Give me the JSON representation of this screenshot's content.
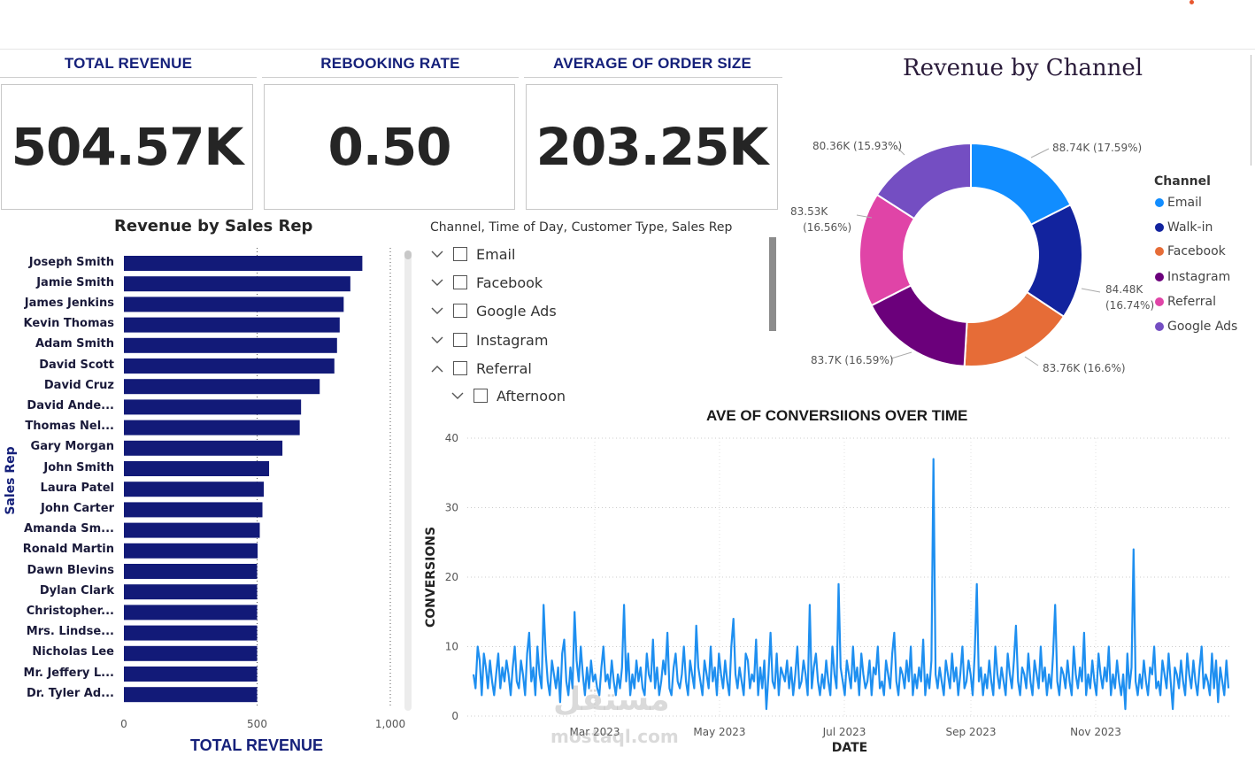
{
  "kpis": [
    {
      "title": "TOTAL REVENUE",
      "value": "504.57K"
    },
    {
      "title": "REBOOKING RATE",
      "value": "0.50"
    },
    {
      "title": "AVERAGE OF ORDER SIZE",
      "value": "203.25K"
    }
  ],
  "slicer": {
    "title": "Channel, Time of Day, Customer Type, Sales Rep",
    "items": [
      {
        "label": "Email",
        "expanded": false
      },
      {
        "label": "Facebook",
        "expanded": false
      },
      {
        "label": "Google Ads",
        "expanded": false
      },
      {
        "label": "Instagram",
        "expanded": false
      },
      {
        "label": "Referral",
        "expanded": true
      },
      {
        "label": "Afternoon",
        "expanded": false
      }
    ]
  },
  "donut_legend": {
    "title": "Channel"
  },
  "watermark": {
    "arabic": "مستقل",
    "site": "mostaql.com"
  },
  "colors": {
    "navy": "#121a78",
    "line": "#1e8ff0",
    "title_blue": "#15207a"
  },
  "chart_data": [
    {
      "type": "bar",
      "orientation": "horizontal",
      "title": "Revenue by Sales Rep",
      "xlabel": "TOTAL REVENUE",
      "ylabel": "Sales Rep",
      "xlim": [
        0,
        1000
      ],
      "xticks": [
        "0",
        "500",
        "1,000"
      ],
      "categories": [
        "Joseph Smith",
        "Jamie Smith",
        "James Jenkins",
        "Kevin Thomas",
        "Adam Smith",
        "David Scott",
        "David Cruz",
        "David Ande...",
        "Thomas Nel...",
        "Gary Morgan",
        "John Smith",
        "Laura Patel",
        "John Carter",
        "Amanda Sm...",
        "Ronald Martin",
        "Dawn Blevins",
        "Dylan Clark",
        "Christopher...",
        "Mrs. Lindse...",
        "Nicholas Lee",
        "Mr. Jeffery L...",
        "Dr. Tyler Ad..."
      ],
      "values": [
        895,
        850,
        825,
        810,
        800,
        790,
        735,
        665,
        660,
        595,
        545,
        525,
        520,
        510,
        502,
        500,
        500,
        500,
        500,
        500,
        500,
        500
      ],
      "color": "#121a78"
    },
    {
      "type": "pie",
      "subtype": "donut",
      "title": "Revenue by Channel",
      "legend_title": "Channel",
      "legend_order": [
        "Email",
        "Walk-in",
        "Facebook",
        "Instagram",
        "Referral",
        "Google Ads"
      ],
      "slices": [
        {
          "name": "Email",
          "value": 88.74,
          "label": "88.74K (17.59%)",
          "color": "#118dff"
        },
        {
          "name": "Walk-in",
          "value": 84.48,
          "label": "84.48K (16.74%)",
          "color": "#12239e"
        },
        {
          "name": "Facebook",
          "value": 83.76,
          "label": "83.76K (16.6%)",
          "color": "#e66c37"
        },
        {
          "name": "Instagram",
          "value": 83.7,
          "label": "83.7K (16.59%)",
          "color": "#6b007b"
        },
        {
          "name": "Referral",
          "value": 83.53,
          "label": "83.53K (16.56%)",
          "color": "#e044a7"
        },
        {
          "name": "Google Ads",
          "value": 80.36,
          "label": "80.36K (15.93%)",
          "color": "#744ec2"
        }
      ]
    },
    {
      "type": "line",
      "title": "AVE OF CONVERSIIONS OVER TIME",
      "xlabel": "DATE",
      "ylabel": "CONVERSIONS",
      "ylim": [
        0,
        40
      ],
      "yticks": [
        "0",
        "10",
        "20",
        "30",
        "40"
      ],
      "xticks": [
        "Mar 2023",
        "May 2023",
        "Jul 2023",
        "Sep 2023",
        "Nov 2023"
      ],
      "x_range": [
        "2023-01-15",
        "2023-12-31"
      ],
      "color": "#1e8ff0",
      "values": [
        6,
        4,
        10,
        8,
        3,
        9,
        7,
        4,
        8,
        5,
        3,
        6,
        9,
        4,
        7,
        5,
        8,
        6,
        3,
        7,
        10,
        5,
        4,
        8,
        6,
        3,
        9,
        12,
        5,
        7,
        3,
        10,
        6,
        4,
        16,
        9,
        5,
        3,
        8,
        6,
        4,
        7,
        2,
        9,
        11,
        5,
        3,
        7,
        4,
        15,
        8,
        5,
        10,
        6,
        3,
        7,
        4,
        8,
        5,
        6,
        4,
        3,
        7,
        10,
        5,
        6,
        4,
        8,
        5,
        3,
        6,
        4,
        7,
        16,
        5,
        9,
        3,
        6,
        4,
        8,
        5,
        7,
        4,
        3,
        9,
        6,
        5,
        11,
        4,
        7,
        3,
        5,
        8,
        6,
        12,
        4,
        3,
        7,
        9,
        5,
        4,
        6,
        10,
        5,
        3,
        8,
        6,
        4,
        13,
        7,
        5,
        3,
        8,
        6,
        4,
        10,
        5,
        7,
        3,
        9,
        6,
        4,
        8,
        5,
        3,
        10,
        14,
        6,
        4,
        7,
        5,
        3,
        9,
        8,
        4,
        6,
        5,
        11,
        3,
        7,
        4,
        8,
        1,
        6,
        12,
        5,
        4,
        9,
        3,
        7,
        6,
        5,
        8,
        4,
        7,
        3,
        6,
        10,
        4,
        5,
        8,
        6,
        3,
        16,
        4,
        7,
        9,
        5,
        3,
        6,
        4,
        8,
        5,
        3,
        10,
        6,
        4,
        19,
        7,
        5,
        3,
        8,
        6,
        4,
        10,
        5,
        7,
        3,
        9,
        6,
        4,
        5,
        8,
        3,
        7,
        6,
        10,
        4,
        5,
        3,
        8,
        6,
        4,
        9,
        12,
        5,
        3,
        7,
        6,
        4,
        8,
        5,
        10,
        3,
        6,
        4,
        7,
        5,
        11,
        3,
        6,
        4,
        8,
        37,
        6,
        4,
        7,
        5,
        3,
        8,
        6,
        4,
        9,
        5,
        7,
        3,
        6,
        10,
        4,
        5,
        8,
        6,
        3,
        9,
        19,
        5,
        7,
        3,
        6,
        4,
        8,
        5,
        3,
        10,
        6,
        4,
        7,
        5,
        3,
        9,
        6,
        4,
        8,
        13,
        5,
        3,
        7,
        6,
        4,
        9,
        5,
        3,
        8,
        6,
        4,
        10,
        5,
        7,
        3,
        6,
        4,
        9,
        16,
        5,
        3,
        7,
        6,
        4,
        8,
        5,
        3,
        10,
        6,
        4,
        7,
        5,
        12,
        3,
        6,
        4,
        8,
        5,
        3,
        9,
        6,
        4,
        7,
        5,
        10,
        3,
        6,
        4,
        8,
        5,
        3,
        6,
        1,
        9,
        4,
        7,
        24,
        5,
        3,
        6,
        4,
        8,
        5,
        3,
        7,
        6,
        10,
        4,
        5,
        3,
        8,
        6,
        4,
        9,
        5,
        1,
        7,
        6,
        4,
        8,
        5,
        3,
        9,
        6,
        4,
        8,
        5,
        3,
        7,
        10,
        4,
        6,
        5,
        3,
        9,
        4,
        8,
        2,
        7,
        5,
        3,
        8,
        4
      ]
    }
  ]
}
